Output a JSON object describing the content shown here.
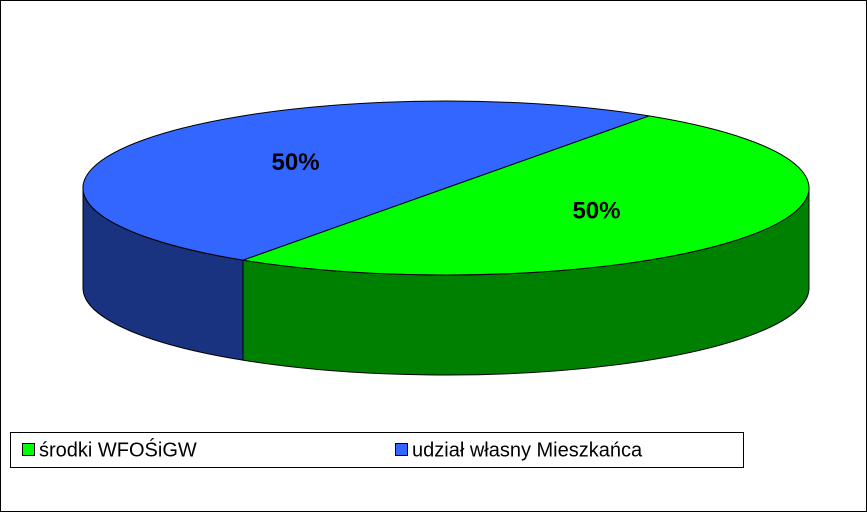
{
  "chart_data": {
    "type": "pie",
    "categories": [
      "środki WFOŚiGW",
      "udział własny Mieszkańca"
    ],
    "values": [
      50,
      50
    ],
    "value_labels": [
      "50%",
      "50%"
    ],
    "colors": [
      "#00ff00",
      "#3366ff"
    ],
    "legend": "bottom"
  }
}
